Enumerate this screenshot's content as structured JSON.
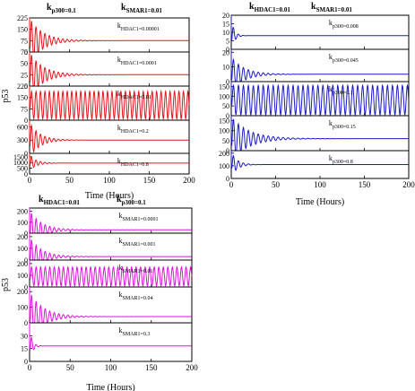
{
  "chart_data": [
    {
      "type": "line",
      "panel": "top-left",
      "color": "#e8141c",
      "header": [
        {
          "main": "k",
          "sub": "p300=0.1"
        },
        {
          "main": "k",
          "sub": "SMAR1=0.01"
        }
      ],
      "xlabel": "Time (Hours)",
      "ylabel": "p53",
      "xlim": [
        0,
        200
      ],
      "xticks": [
        "0",
        "50",
        "100",
        "150",
        "200"
      ],
      "subplots": [
        {
          "label": {
            "main": "k",
            "sub": "HDAC1=0.00001"
          },
          "ylim": [
            0,
            225
          ],
          "yticks": [
            "0",
            "75",
            "150",
            "225"
          ],
          "baseline": 75,
          "amp": 150,
          "decay": 0.06,
          "period": 5.6
        },
        {
          "label": {
            "main": "k",
            "sub": "HDAC1=0.0001"
          },
          "ylim": [
            0,
            75
          ],
          "yticks": [
            "0",
            "25",
            "50",
            "75"
          ],
          "baseline": 25,
          "amp": 50,
          "decay": 0.06,
          "period": 5.6
        },
        {
          "label": {
            "main": "k",
            "sub": "HDAC1=0.01"
          },
          "ylim": [
            0,
            225
          ],
          "yticks": [
            "0",
            "75",
            "150",
            "225"
          ],
          "baseline": 100,
          "amp": 90,
          "decay": 0.0,
          "period": 5.6
        },
        {
          "label": {
            "main": "k",
            "sub": "HDAC1=0.2"
          },
          "ylim": [
            0,
            750
          ],
          "yticks": [
            "0",
            "300",
            "600"
          ],
          "baseline": 300,
          "amp": 400,
          "decay": 0.08,
          "period": 5.6
        },
        {
          "label": {
            "main": "k",
            "sub": "HDAC1=0.8"
          },
          "ylim": [
            0,
            1800
          ],
          "yticks": [
            "0",
            "500",
            "1000",
            "1500"
          ],
          "baseline": 950,
          "amp": 700,
          "decay": 0.12,
          "period": 5.6
        }
      ]
    },
    {
      "type": "line",
      "panel": "top-right",
      "color": "#1a1ac8",
      "header": [
        {
          "main": "k",
          "sub": "HDAC1=0.01"
        },
        {
          "main": "k",
          "sub": "SMAR1=0.01"
        }
      ],
      "xlabel": "Time (Hours)",
      "ylabel": "",
      "xlim": [
        0,
        200
      ],
      "xticks": [
        "0",
        "50",
        "100",
        "150",
        "200"
      ],
      "subplots": [
        {
          "label": {
            "main": "k",
            "sub": "p300=0.008"
          },
          "ylim": [
            0,
            20
          ],
          "yticks": [
            "0",
            "5",
            "10",
            "15",
            "20"
          ],
          "baseline": 8,
          "amp": 10,
          "decay": 0.3,
          "period": 5.6
        },
        {
          "label": {
            "main": "k",
            "sub": "p300=0.045"
          },
          "ylim": [
            0,
            22
          ],
          "yticks": [
            "0",
            "10",
            "20"
          ],
          "baseline": 5,
          "amp": 12,
          "decay": 0.07,
          "period": 5.6
        },
        {
          "label": {
            "main": "k",
            "sub": "p300=0.1"
          },
          "ylim": [
            0,
            175
          ],
          "yticks": [
            "0",
            "50",
            "100",
            "150"
          ],
          "baseline": 80,
          "amp": 75,
          "decay": 0.0,
          "period": 5.6
        },
        {
          "label": {
            "main": "k",
            "sub": "p300=0.15"
          },
          "ylim": [
            0,
            175
          ],
          "yticks": [
            "0",
            "50",
            "100",
            "150"
          ],
          "baseline": 60,
          "amp": 110,
          "decay": 0.05,
          "period": 5.6
        },
        {
          "label": {
            "main": "k",
            "sub": "p300=0.8"
          },
          "ylim": [
            0,
            220
          ],
          "yticks": [
            "0",
            "100",
            "200"
          ],
          "baseline": 110,
          "amp": 100,
          "decay": 0.15,
          "period": 5.6
        }
      ]
    },
    {
      "type": "line",
      "panel": "bottom-left",
      "color": "#e010e0",
      "header": [
        {
          "main": "k",
          "sub": "HDAC1=0.01"
        },
        {
          "main": "k",
          "sub": "p300=0.1"
        }
      ],
      "xlabel": "Time (Hours)",
      "ylabel": "p53",
      "xlim": [
        0,
        200
      ],
      "xticks": [
        "0",
        "50",
        "100",
        "150",
        "200"
      ],
      "subplots": [
        {
          "label": {
            "main": "k",
            "sub": "SMAR1=0.0001"
          },
          "ylim": [
            0,
            230
          ],
          "yticks": [
            "0",
            "100",
            "200"
          ],
          "baseline": 30,
          "amp": 180,
          "decay": 0.07,
          "period": 5.6
        },
        {
          "label": {
            "main": "k",
            "sub": "SMAR1=0.001"
          },
          "ylim": [
            0,
            230
          ],
          "yticks": [
            "0",
            "100",
            "200"
          ],
          "baseline": 30,
          "amp": 170,
          "decay": 0.07,
          "period": 5.6
        },
        {
          "label": {
            "main": "k",
            "sub": "SMAR1=0.01"
          },
          "ylim": [
            0,
            230
          ],
          "yticks": [
            "0",
            "100",
            "200"
          ],
          "baseline": 90,
          "amp": 80,
          "decay": 0.0,
          "period": 5.6
        },
        {
          "label": {
            "main": "k",
            "sub": "SMAR1=0.04"
          },
          "ylim": [
            0,
            230
          ],
          "yticks": [
            "0",
            "100",
            "200"
          ],
          "baseline": 40,
          "amp": 160,
          "decay": 0.06,
          "period": 5.6
        },
        {
          "label": {
            "main": "k",
            "sub": "SMAR1=0.3"
          },
          "ylim": [
            0,
            45
          ],
          "yticks": [
            "0",
            "15",
            "30"
          ],
          "baseline": 18,
          "amp": 20,
          "decay": 0.3,
          "period": 5.6
        }
      ]
    }
  ]
}
